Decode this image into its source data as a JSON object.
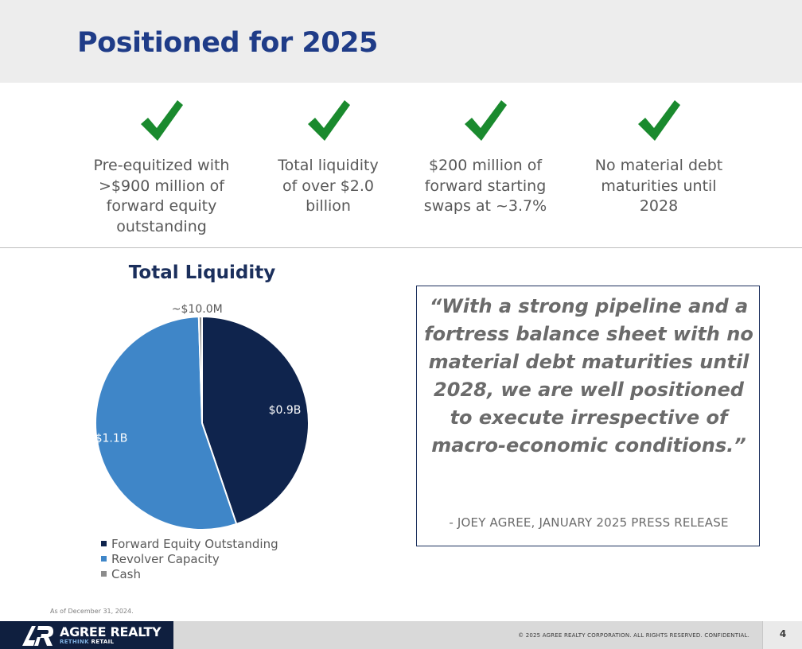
{
  "page": {
    "title": "Positioned for 2025",
    "footnote": "As of December 31, 2024."
  },
  "highlights": [
    {
      "icon": "checkmark-icon",
      "text": "Pre-equitized with >$900 million of forward equity outstanding"
    },
    {
      "icon": "checkmark-icon",
      "text": "Total liquidity of over $2.0 billion"
    },
    {
      "icon": "checkmark-icon",
      "text": "$200 million of forward starting swaps at ~3.7%"
    },
    {
      "icon": "checkmark-icon",
      "text": "No material debt maturities until 2028"
    }
  ],
  "colors": {
    "title": "#1f3c88",
    "check": "#1a8a2e",
    "forward_equity": "#0f244d",
    "revolver": "#3f86c8",
    "cash": "#8c8c8c",
    "quote_border": "#1b2f5c"
  },
  "chart_data": {
    "type": "pie",
    "title": "Total Liquidity",
    "slices": [
      {
        "name": "Forward Equity Outstanding",
        "value": 0.9,
        "label": "$0.9B",
        "color": "#0f244d"
      },
      {
        "name": "Revolver Capacity",
        "value": 1.1,
        "label": "$1.1B",
        "color": "#3f86c8"
      },
      {
        "name": "Cash",
        "value": 0.01,
        "label": "~$10.0M",
        "color": "#8c8c8c"
      }
    ],
    "start": "top, clockwise",
    "legend_position": "bottom"
  },
  "quote": {
    "text": "“With a strong pipeline and a fortress balance sheet with no material debt maturities until 2028, we are well positioned to execute irrespective of macro-economic conditions.”",
    "attribution": "- JOEY AGREE, JANUARY 2025 PRESS RELEASE"
  },
  "footer": {
    "logo_name": "AGREE REALTY",
    "logo_tagline_1": "RETHINK",
    "logo_tagline_2": "RETAIL",
    "copyright": "© 2025 AGREE REALTY CORPORATION. ALL RIGHTS RESERVED. CONFIDENTIAL.",
    "page_number": "4"
  }
}
